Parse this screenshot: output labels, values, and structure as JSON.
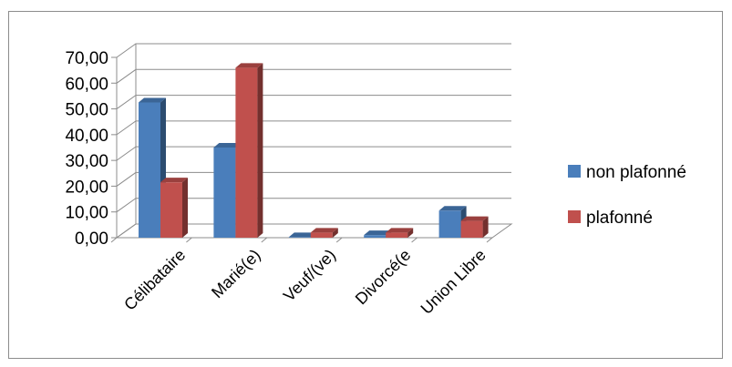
{
  "chart_data": {
    "type": "bar",
    "categories": [
      "Célibataire",
      "Marié(e)",
      "Veuf/(ve)",
      "Divorcé(e",
      "Union Libre"
    ],
    "series": [
      {
        "name": "non plafonné",
        "values": [
          52.5,
          35.0,
          0.2,
          1.0,
          10.5
        ],
        "color": "#4a7ebb"
      },
      {
        "name": "plafonné",
        "values": [
          21.5,
          66.0,
          2.0,
          2.0,
          6.5
        ],
        "color": "#c0504d"
      }
    ],
    "y_ticks": [
      "0,00",
      "10,00",
      "20,00",
      "30,00",
      "40,00",
      "50,00",
      "60,00",
      "70,00"
    ],
    "ylim": [
      0,
      70
    ],
    "grid": true,
    "legend_position": "right",
    "style": "3d-clustered-column"
  }
}
